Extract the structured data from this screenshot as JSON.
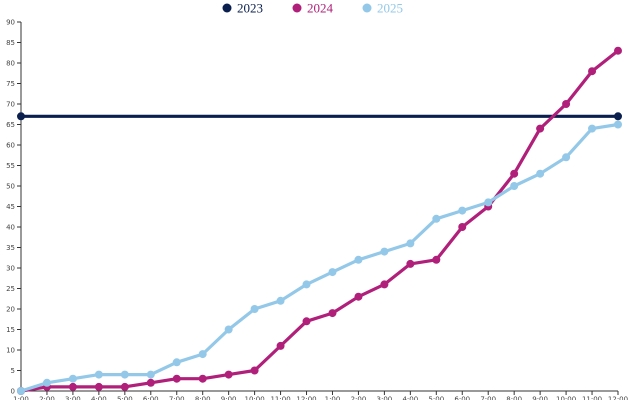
{
  "chart_data": {
    "type": "line",
    "categories": [
      "1:00",
      "2:00",
      "3:00",
      "4:00",
      "5:00",
      "6:00",
      "7:00",
      "8:00",
      "9:00",
      "10:00",
      "11:00",
      "12:00",
      "1:00",
      "2:00",
      "3:00",
      "4:00",
      "5:00",
      "6:00",
      "7:00",
      "8:00",
      "9:00",
      "10:00",
      "11:00",
      "12:00"
    ],
    "y_ticks": [
      "0",
      "5",
      "10",
      "15",
      "20",
      "25",
      "30",
      "35",
      "40",
      "45",
      "50",
      "55",
      "60",
      "65",
      "70",
      "75",
      "80",
      "85",
      "90"
    ],
    "ylim": [
      0,
      90
    ],
    "grid": false,
    "legend_position": "top-center",
    "series": [
      {
        "name": "2023",
        "color": "#0b1f4f",
        "values": [
          67,
          67,
          67,
          67,
          67,
          67,
          67,
          67,
          67,
          67,
          67,
          67,
          67,
          67,
          67,
          67,
          67,
          67,
          67,
          67,
          67,
          67,
          67,
          67
        ],
        "marker_indices": [
          0,
          23
        ]
      },
      {
        "name": "2024",
        "color": "#b0207a",
        "values": [
          0,
          1,
          1,
          1,
          1,
          2,
          3,
          3,
          4,
          5,
          11,
          17,
          19,
          23,
          26,
          31,
          32,
          40,
          45,
          53,
          64,
          70,
          78,
          83
        ]
      },
      {
        "name": "2025",
        "color": "#93c8e8",
        "values": [
          0,
          2,
          3,
          4,
          4,
          4,
          7,
          9,
          15,
          20,
          22,
          26,
          29,
          32,
          34,
          36,
          42,
          44,
          46,
          50,
          53,
          57,
          64,
          65
        ]
      }
    ]
  }
}
